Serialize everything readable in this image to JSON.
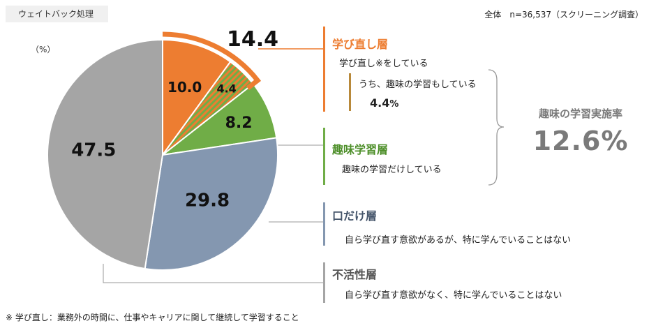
{
  "header": {
    "weight_note": "ウェイトバック処理",
    "sample_note": "全体　n=36,537（スクリーニング調査）"
  },
  "chart_data": {
    "type": "pie",
    "unit_label": "（%）",
    "total_label": "14.4",
    "slices": [
      {
        "label": "学び直し層",
        "value": 10.0,
        "value_label": "10.0",
        "color": "#ed7d31"
      },
      {
        "label": "学び直し層（うち、趣味の学習もしている）",
        "value": 4.4,
        "value_label": "4.4",
        "color": "#70ad47",
        "pattern": "hatched-orange-green"
      },
      {
        "label": "趣味学習層",
        "value": 8.2,
        "value_label": "8.2",
        "color": "#70ad47"
      },
      {
        "label": "口だけ層",
        "value": 29.8,
        "value_label": "29.8",
        "color": "#8497b0"
      },
      {
        "label": "不活性層",
        "value": 47.5,
        "value_label": "47.5",
        "color": "#a5a5a5"
      }
    ]
  },
  "segments": [
    {
      "title": "学び直し層",
      "title_color": "#ed7d31",
      "bar_color": "#ed7d31",
      "desc": "学び直し※をしている",
      "sub_desc": "うち、趣味の学習もしている",
      "sub_value": "4.4",
      "sub_unit": "%"
    },
    {
      "title": "趣味学習層",
      "title_color": "#4e8f2a",
      "bar_color": "#70ad47",
      "desc": "趣味の学習だけしている"
    },
    {
      "title": "口だけ層",
      "title_color": "#44546a",
      "bar_color": "#8497b0",
      "desc": "自ら学び直す意欲があるが、特に学んでいることはない"
    },
    {
      "title": "不活性層",
      "title_color": "#555555",
      "bar_color": "#a5a5a5",
      "desc": "自ら学び直す意欲がなく、特に学んでいることはない"
    }
  ],
  "hobby_rate": {
    "label": "趣味の学習実施率",
    "value": "12.6%"
  },
  "footnote": "※ 学び直し：業務外の時間に、仕事やキャリアに関して継続して学習すること"
}
